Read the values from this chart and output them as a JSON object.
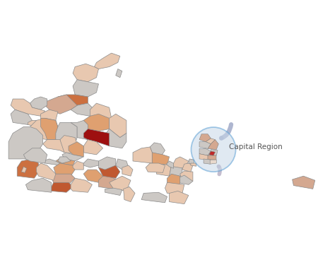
{
  "title": "",
  "background_color": "#ffffff",
  "figure_width": 4.67,
  "figure_height": 3.68,
  "dpi": 100,
  "capital_region_label": "Capital Region",
  "label_fontsize": 7.5,
  "label_color": "#555555",
  "circle_color": "#5b9fd4",
  "circle_fill": "#c8d8e8",
  "arrow_color": "#a0aac8",
  "arrow_color2": "#b0a8c0",
  "map_outline": "#888888",
  "colors": {
    "white": "#ffffff",
    "light_gray": "#ccc8c4",
    "light_peach": "#e8c8b0",
    "peach": "#d4906a",
    "light_orange": "#dfa070",
    "orange": "#cc7040",
    "dark_orange": "#c05830",
    "red": "#c02828",
    "dark_red": "#9e1010",
    "muted_peach": "#d4a890",
    "pale": "#e8d8cc"
  },
  "xlim": [
    7.8,
    15.5
  ],
  "ylim": [
    54.45,
    58.1
  ]
}
